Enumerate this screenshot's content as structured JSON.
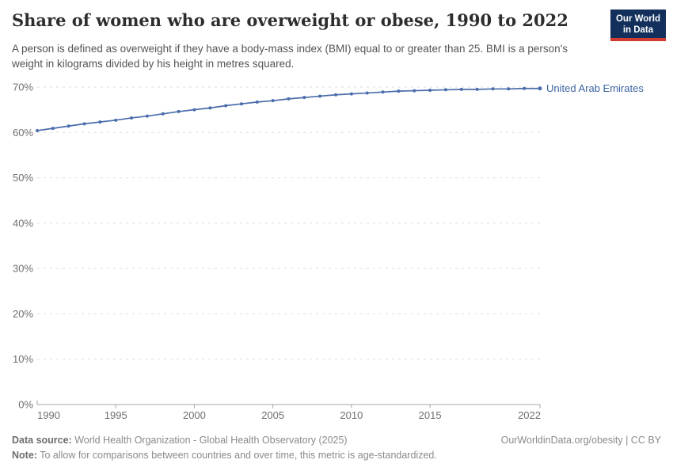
{
  "header": {
    "title": "Share of women who are overweight or obese, 1990 to 2022",
    "subtitle": "A person is defined as overweight if they have a body-mass index (BMI) equal to or greater than 25. BMI is a person's weight in kilograms divided by his height in metres squared.",
    "logo": {
      "line1": "Our World",
      "line2": "in Data"
    }
  },
  "chart_data": {
    "type": "line",
    "title": "Share of women who are overweight or obese, 1990 to 2022",
    "x": [
      1990,
      1991,
      1992,
      1993,
      1994,
      1995,
      1996,
      1997,
      1998,
      1999,
      2000,
      2001,
      2002,
      2003,
      2004,
      2005,
      2006,
      2007,
      2008,
      2009,
      2010,
      2011,
      2012,
      2013,
      2014,
      2015,
      2016,
      2017,
      2018,
      2019,
      2020,
      2021,
      2022
    ],
    "series": [
      {
        "name": "United Arab Emirates",
        "values": [
          60.4,
          60.9,
          61.4,
          61.9,
          62.3,
          62.7,
          63.2,
          63.6,
          64.1,
          64.6,
          65.0,
          65.4,
          65.9,
          66.3,
          66.7,
          67.0,
          67.4,
          67.7,
          68.0,
          68.3,
          68.5,
          68.7,
          68.9,
          69.1,
          69.2,
          69.3,
          69.4,
          69.5,
          69.5,
          69.6,
          69.6,
          69.7,
          69.7
        ]
      }
    ],
    "xlabel": "",
    "ylabel": "",
    "ylim": [
      0,
      70
    ],
    "yticks": [
      0,
      10,
      20,
      30,
      40,
      50,
      60,
      70
    ],
    "ytick_suffix": "%",
    "xticks": [
      1990,
      1995,
      2000,
      2005,
      2010,
      2015,
      2022
    ],
    "grid": "horizontal-dashed",
    "legend_position": "end-of-line-label",
    "markers": "circle-every-year"
  },
  "colors": {
    "series": "#4a6cab",
    "series_label": "#3d64a0",
    "grid": "#dedede",
    "axis": "#a5a5a5",
    "tick_label": "#6f6f6f",
    "title_text": "#2d2d2d",
    "subtitle_text": "#555555",
    "footer_text": "#8a8a8a",
    "logo_bg": "#12305b",
    "logo_accent": "#d13b32"
  },
  "footer": {
    "datasource_label": "Data source:",
    "datasource_text": "World Health Organization - Global Health Observatory (2025)",
    "note_label": "Note:",
    "note_text": "To allow for comparisons between countries and over time, this metric is age-standardized.",
    "license": "OurWorldinData.org/obesity | CC BY"
  }
}
